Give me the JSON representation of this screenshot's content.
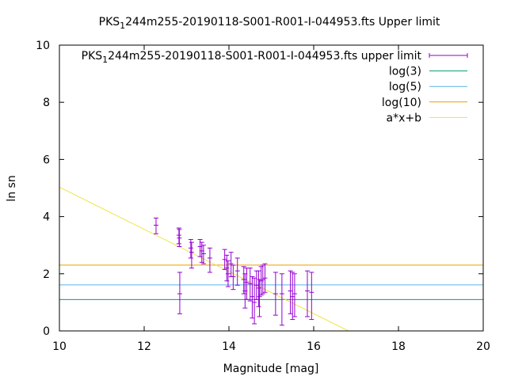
{
  "chart_data": {
    "type": "scatter",
    "title": {
      "prefix": "PKS",
      "sub": "1",
      "rest": "244m255-20190118-S001-R001-I-044953.fts Upper limit"
    },
    "xlabel": "Magnitude [mag]",
    "ylabel": "ln sn",
    "xlim": [
      10,
      20
    ],
    "ylim": [
      0,
      10
    ],
    "xticks": [
      10,
      12,
      14,
      16,
      18,
      20
    ],
    "yticks": [
      0,
      2,
      4,
      6,
      8,
      10
    ],
    "grid": false,
    "legend_position": "top-right",
    "series": [
      {
        "name": {
          "prefix": "PKS",
          "sub": "1",
          "rest": "244m255-20190118-S001-R001-I-044953.fts upper limit"
        },
        "kind": "errorbar",
        "color": "#9400d3",
        "points": [
          {
            "x": 12.28,
            "y": 3.7,
            "lo": 3.4,
            "hi": 3.95
          },
          {
            "x": 12.82,
            "y": 3.35,
            "lo": 3.05,
            "hi": 3.6
          },
          {
            "x": 12.83,
            "y": 3.25,
            "lo": 2.95,
            "hi": 3.55
          },
          {
            "x": 12.84,
            "y": 1.3,
            "lo": 0.6,
            "hi": 2.05
          },
          {
            "x": 13.1,
            "y": 2.9,
            "lo": 2.55,
            "hi": 3.2
          },
          {
            "x": 13.12,
            "y": 2.75,
            "lo": 2.2,
            "hi": 3.1
          },
          {
            "x": 13.32,
            "y": 2.95,
            "lo": 2.6,
            "hi": 3.2
          },
          {
            "x": 13.36,
            "y": 2.8,
            "lo": 2.4,
            "hi": 3.1
          },
          {
            "x": 13.4,
            "y": 2.7,
            "lo": 2.35,
            "hi": 3.0
          },
          {
            "x": 13.55,
            "y": 2.55,
            "lo": 2.05,
            "hi": 2.9
          },
          {
            "x": 13.9,
            "y": 2.5,
            "lo": 2.15,
            "hi": 2.85
          },
          {
            "x": 13.95,
            "y": 2.2,
            "lo": 1.75,
            "hi": 2.65
          },
          {
            "x": 13.98,
            "y": 2.0,
            "lo": 1.55,
            "hi": 2.45
          },
          {
            "x": 14.05,
            "y": 2.35,
            "lo": 1.9,
            "hi": 2.75
          },
          {
            "x": 14.1,
            "y": 1.9,
            "lo": 1.45,
            "hi": 2.3
          },
          {
            "x": 14.2,
            "y": 2.1,
            "lo": 1.6,
            "hi": 2.55
          },
          {
            "x": 14.35,
            "y": 1.8,
            "lo": 1.3,
            "hi": 2.25
          },
          {
            "x": 14.38,
            "y": 1.4,
            "lo": 0.8,
            "hi": 2.0
          },
          {
            "x": 14.42,
            "y": 1.7,
            "lo": 1.1,
            "hi": 2.2
          },
          {
            "x": 14.5,
            "y": 1.65,
            "lo": 1.05,
            "hi": 2.2
          },
          {
            "x": 14.55,
            "y": 1.2,
            "lo": 0.45,
            "hi": 1.9
          },
          {
            "x": 14.6,
            "y": 1.0,
            "lo": 0.25,
            "hi": 1.85
          },
          {
            "x": 14.65,
            "y": 1.6,
            "lo": 1.1,
            "hi": 2.1
          },
          {
            "x": 14.7,
            "y": 1.5,
            "lo": 0.85,
            "hi": 2.1
          },
          {
            "x": 14.72,
            "y": 1.2,
            "lo": 0.5,
            "hi": 1.8
          },
          {
            "x": 14.76,
            "y": 1.75,
            "lo": 1.25,
            "hi": 2.25
          },
          {
            "x": 14.8,
            "y": 1.8,
            "lo": 1.3,
            "hi": 2.3
          },
          {
            "x": 14.85,
            "y": 1.85,
            "lo": 1.35,
            "hi": 2.35
          },
          {
            "x": 15.1,
            "y": 1.3,
            "lo": 0.55,
            "hi": 2.05
          },
          {
            "x": 15.25,
            "y": 1.3,
            "lo": 0.2,
            "hi": 2.0
          },
          {
            "x": 15.45,
            "y": 1.4,
            "lo": 0.6,
            "hi": 2.1
          },
          {
            "x": 15.5,
            "y": 1.2,
            "lo": 0.4,
            "hi": 2.05
          },
          {
            "x": 15.55,
            "y": 1.3,
            "lo": 0.5,
            "hi": 2.0
          },
          {
            "x": 15.85,
            "y": 1.4,
            "lo": 0.5,
            "hi": 2.1
          },
          {
            "x": 15.95,
            "y": 1.35,
            "lo": 0.4,
            "hi": 2.05
          }
        ]
      },
      {
        "name": "log(3)",
        "kind": "hline",
        "color": "#009e73",
        "y": 1.0986
      },
      {
        "name": "log(5)",
        "kind": "hline",
        "color": "#56b4e9",
        "y": 1.6094
      },
      {
        "name": "log(10)",
        "kind": "hline",
        "color": "#e69f00",
        "y": 2.3026
      },
      {
        "name": "a*x+b",
        "kind": "line",
        "color": "#f0e442",
        "x": [
          10,
          16.82
        ],
        "y": [
          5.03,
          0
        ]
      }
    ]
  }
}
